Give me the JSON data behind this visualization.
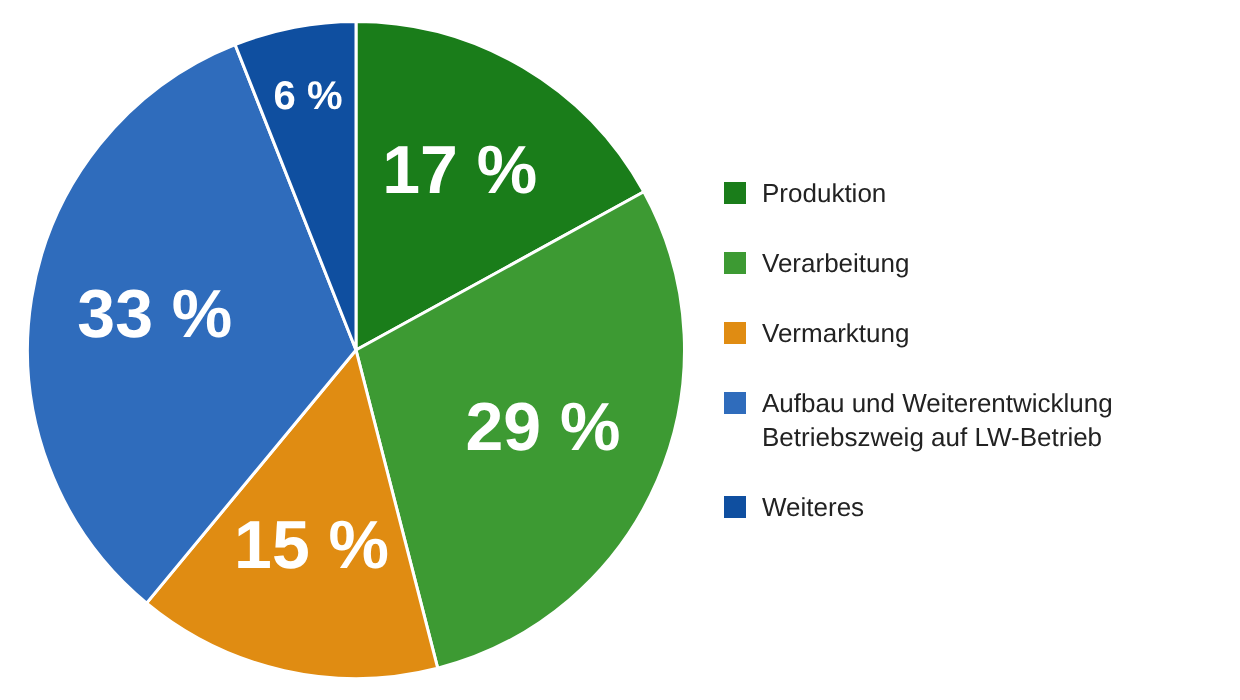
{
  "chart_data": {
    "type": "pie",
    "categories": [
      "Produktion",
      "Verarbeitung",
      "Vermarktung",
      "Aufbau und Weiterentwicklung Betriebszweig auf LW-Betrieb",
      "Weiteres"
    ],
    "values": [
      17,
      29,
      15,
      33,
      6
    ],
    "colors": [
      "#1a7d1a",
      "#3d9a33",
      "#e08c12",
      "#2f6cbc",
      "#0f4fa0"
    ],
    "value_labels": [
      "17 %",
      "29 %",
      "15 %",
      "33 %",
      "6 %"
    ],
    "legend": "right"
  }
}
